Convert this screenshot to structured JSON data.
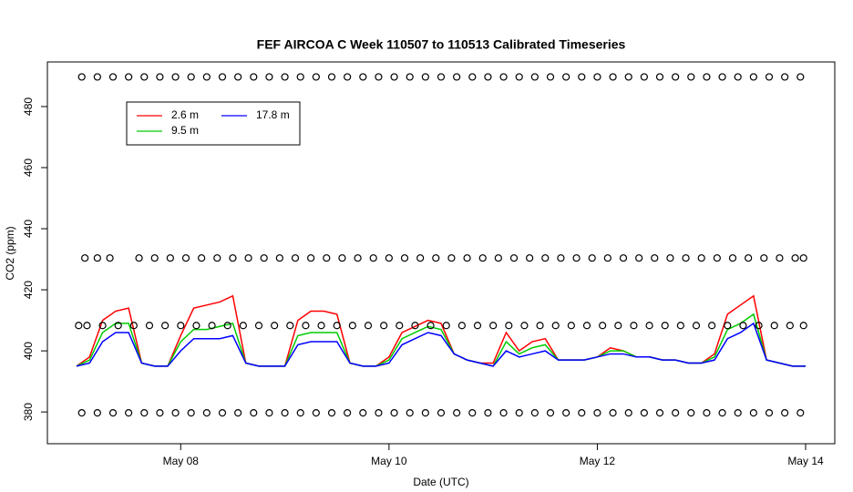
{
  "chart_data": {
    "type": "line",
    "title": "FEF AIRCOA C  Week 110507 to 110513  Calibrated Timeseries",
    "x_label": "Date (UTC)",
    "y_label": "CO2 (ppm)",
    "xlim": [
      6.72,
      14.28
    ],
    "ylim": [
      369.6,
      494.6
    ],
    "xticks": [
      {
        "value": 8,
        "label": "May 08"
      },
      {
        "value": 10,
        "label": "May 10"
      },
      {
        "value": 12,
        "label": "May 12"
      },
      {
        "value": 14,
        "label": "May 14"
      }
    ],
    "yticks": [
      380,
      400,
      420,
      440,
      460,
      480
    ],
    "legend": "top-left",
    "x": [
      7.0,
      7.125,
      7.25,
      7.375,
      7.5,
      7.625,
      7.75,
      7.875,
      8.0,
      8.125,
      8.25,
      8.375,
      8.5,
      8.625,
      8.75,
      8.875,
      9.0,
      9.125,
      9.25,
      9.375,
      9.5,
      9.625,
      9.75,
      9.875,
      10.0,
      10.125,
      10.25,
      10.375,
      10.5,
      10.625,
      10.75,
      10.875,
      11.0,
      11.125,
      11.25,
      11.375,
      11.5,
      11.625,
      11.75,
      11.875,
      12.0,
      12.125,
      12.25,
      12.375,
      12.5,
      12.625,
      12.75,
      12.875,
      13.0,
      13.125,
      13.25,
      13.375,
      13.5,
      13.625,
      13.75,
      13.875,
      14.0
    ],
    "series": [
      {
        "name": "2.6 m",
        "color": "#ff0000",
        "values": [
          395,
          398,
          410,
          413,
          414,
          396,
          395,
          395,
          405,
          414,
          415,
          416,
          418,
          396,
          395,
          395,
          395,
          410,
          413,
          413,
          412,
          396,
          395,
          395,
          398,
          406,
          408,
          410,
          409,
          399,
          397,
          396,
          396,
          406,
          400,
          403,
          404,
          397,
          397,
          397,
          398,
          401,
          400,
          398,
          398,
          397,
          397,
          396,
          396,
          399,
          412,
          415,
          418,
          397,
          396,
          395,
          395
        ]
      },
      {
        "name": "9.5 m",
        "color": "#00cc00",
        "values": [
          395,
          397,
          406,
          409,
          409,
          396,
          395,
          395,
          403,
          407,
          407,
          408,
          409,
          396,
          395,
          395,
          395,
          405,
          406,
          406,
          406,
          396,
          395,
          395,
          397,
          404,
          406,
          408,
          407,
          399,
          397,
          396,
          395,
          403,
          399,
          401,
          402,
          397,
          397,
          397,
          398,
          400,
          400,
          398,
          398,
          397,
          397,
          396,
          396,
          398,
          407,
          409,
          412,
          397,
          396,
          395,
          395
        ]
      },
      {
        "name": "17.8 m",
        "color": "#0000ff",
        "values": [
          395,
          396,
          403,
          406,
          406,
          396,
          395,
          395,
          400,
          404,
          404,
          404,
          405,
          396,
          395,
          395,
          395,
          402,
          403,
          403,
          403,
          396,
          395,
          395,
          396,
          402,
          404,
          406,
          405,
          399,
          397,
          396,
          395,
          400,
          398,
          399,
          400,
          397,
          397,
          397,
          398,
          399,
          399,
          398,
          398,
          397,
          397,
          396,
          396,
          397,
          404,
          406,
          409,
          397,
          396,
          395,
          395
        ]
      }
    ],
    "calibration": [
      {
        "value": 489.7,
        "x": [
          7.05,
          7.2,
          7.35,
          7.5,
          7.65,
          7.8,
          7.95,
          8.1,
          8.25,
          8.4,
          8.55,
          8.7,
          8.85,
          9.0,
          9.15,
          9.3,
          9.45,
          9.6,
          9.75,
          9.9,
          10.05,
          10.2,
          10.35,
          10.5,
          10.65,
          10.8,
          10.95,
          11.1,
          11.25,
          11.4,
          11.55,
          11.7,
          11.85,
          12.0,
          12.15,
          12.3,
          12.45,
          12.6,
          12.75,
          12.9,
          13.05,
          13.2,
          13.35,
          13.5,
          13.65,
          13.8,
          13.95
        ]
      },
      {
        "value": 430.4,
        "x": [
          7.08,
          7.2,
          7.32,
          7.6,
          7.75,
          7.9,
          8.05,
          8.2,
          8.35,
          8.5,
          8.65,
          8.8,
          8.95,
          9.1,
          9.25,
          9.4,
          9.55,
          9.7,
          9.85,
          10.0,
          10.15,
          10.3,
          10.45,
          10.6,
          10.75,
          10.9,
          11.05,
          11.2,
          11.35,
          11.5,
          11.65,
          11.8,
          11.95,
          12.1,
          12.25,
          12.4,
          12.55,
          12.7,
          12.85,
          13.0,
          13.15,
          13.3,
          13.45,
          13.6,
          13.75,
          13.9,
          13.98
        ]
      },
      {
        "value": 408.3,
        "x": [
          7.02,
          7.1,
          7.25,
          7.4,
          7.55,
          7.7,
          7.85,
          8.0,
          8.15,
          8.3,
          8.45,
          8.6,
          8.75,
          8.9,
          9.05,
          9.2,
          9.35,
          9.5,
          9.65,
          9.8,
          9.95,
          10.1,
          10.25,
          10.4,
          10.55,
          10.7,
          10.85,
          11.0,
          11.15,
          11.3,
          11.45,
          11.6,
          11.75,
          11.9,
          12.05,
          12.2,
          12.35,
          12.5,
          12.65,
          12.8,
          12.95,
          13.1,
          13.25,
          13.4,
          13.55,
          13.7,
          13.85,
          13.98
        ]
      },
      {
        "value": 379.7,
        "x": [
          7.05,
          7.2,
          7.35,
          7.5,
          7.65,
          7.8,
          7.95,
          8.1,
          8.25,
          8.4,
          8.55,
          8.7,
          8.85,
          9.0,
          9.15,
          9.3,
          9.45,
          9.6,
          9.75,
          9.9,
          10.05,
          10.2,
          10.35,
          10.5,
          10.65,
          10.8,
          10.95,
          11.1,
          11.25,
          11.4,
          11.55,
          11.7,
          11.85,
          12.0,
          12.15,
          12.3,
          12.45,
          12.6,
          12.75,
          12.9,
          13.05,
          13.2,
          13.35,
          13.5,
          13.65,
          13.8,
          13.95
        ]
      }
    ]
  }
}
